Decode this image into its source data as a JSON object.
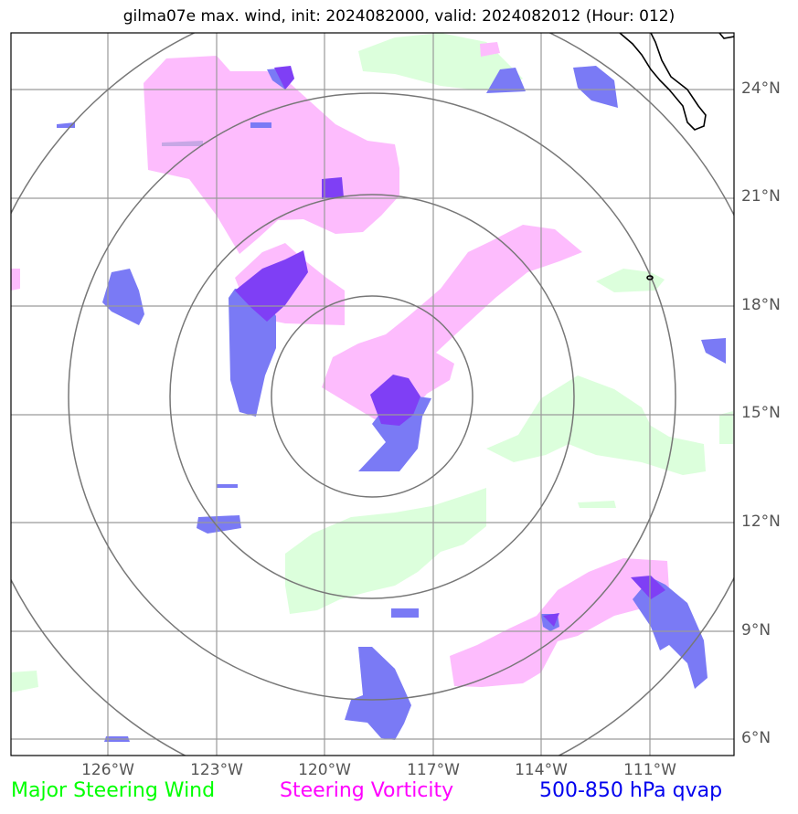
{
  "title": "gilma07e max. wind, init: 2024082000, valid: 2024082012 (Hour: 012)",
  "lat_labels": [
    "24°N",
    "21°N",
    "18°N",
    "15°N",
    "12°N",
    "9°N",
    "6°N"
  ],
  "lon_labels": [
    "126°W",
    "123°W",
    "120°W",
    "117°W",
    "114°W",
    "111°W"
  ],
  "legend": {
    "wind": "Major Steering Wind",
    "vorticity": "Steering Vorticity",
    "qvap": "500-850 hPa qvap"
  },
  "colors": {
    "wind": "#00ff00",
    "vorticity": "#ff00ff",
    "qvap": "#0000ee",
    "wind_fill": "#dcffdc",
    "vorticity_fill": "#fdbcfd",
    "qvap_fill": "#7a7af5",
    "overlap_fill": "#7f3ff5",
    "grid": "#9a9a9a",
    "ring": "#777777"
  }
}
